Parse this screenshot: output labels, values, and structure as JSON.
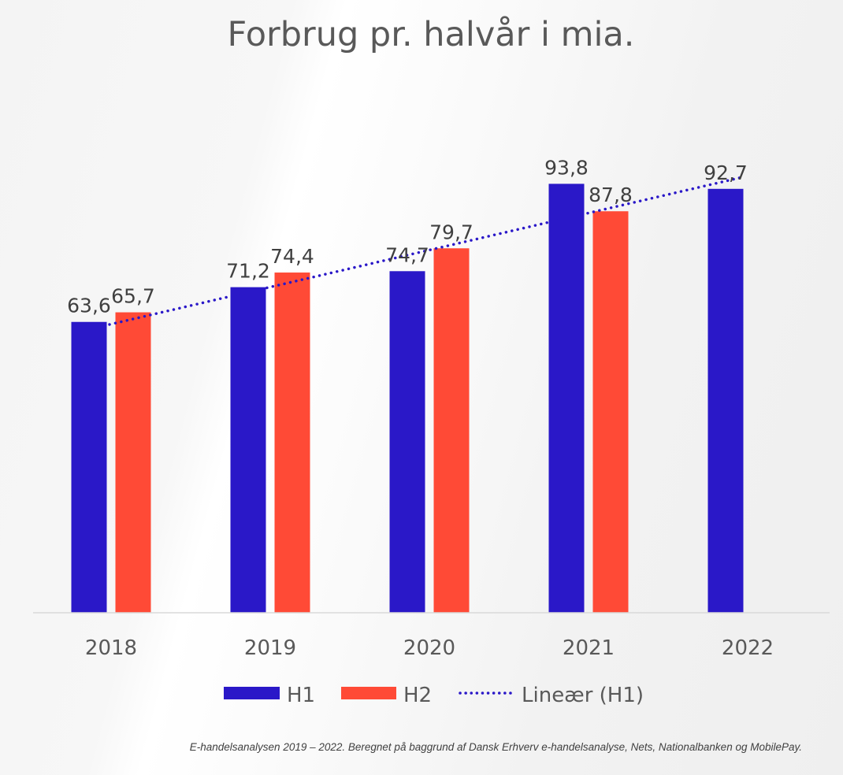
{
  "chart_data": {
    "type": "bar",
    "title": "Forbrug pr. halvår i mia.",
    "categories": [
      "2018",
      "2019",
      "2020",
      "2021",
      "2022"
    ],
    "series": [
      {
        "name": "H1",
        "color": "#2a18c8",
        "values": [
          63.6,
          71.2,
          74.7,
          93.8,
          92.7
        ],
        "labels": [
          "63,6",
          "71,2",
          "74,7",
          "93,8",
          "92,7"
        ]
      },
      {
        "name": "H2",
        "color": "#ff4a36",
        "values": [
          65.7,
          74.4,
          79.7,
          87.8,
          null
        ],
        "labels": [
          "65,7",
          "74,4",
          "79,7",
          "87,8",
          null
        ]
      }
    ],
    "trendline": {
      "name": "Lineær (H1)",
      "type": "linear",
      "of_series": "H1",
      "style": "dotted",
      "color": "#2a18c8"
    },
    "ylim": [
      0,
      134
    ],
    "grid": false,
    "legend": "bottom",
    "xlabel": "",
    "ylabel": ""
  },
  "footnote": "E-handelsanalysen 2019 – 2022. Beregnet på baggrund af Dansk Erhverv e-handelsanalyse, Nets, Nationalbanken og MobilePay."
}
